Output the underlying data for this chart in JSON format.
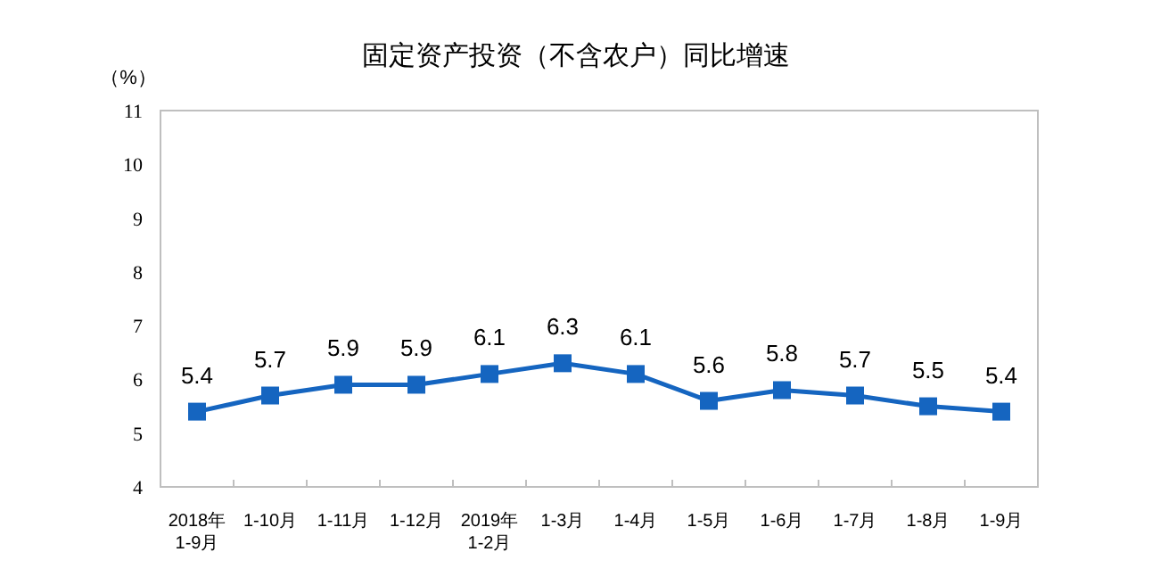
{
  "chart_data": {
    "type": "line",
    "title": "固定资产投资（不含农户）同比增速",
    "ylabel": "（%）",
    "categories": [
      "2018年\n1-9月",
      "1-10月",
      "1-11月",
      "1-12月",
      "2019年\n1-2月",
      "1-3月",
      "1-4月",
      "1-5月",
      "1-6月",
      "1-7月",
      "1-8月",
      "1-9月"
    ],
    "series": [
      {
        "color": "#1565c0",
        "values": [
          5.4,
          5.7,
          5.9,
          5.9,
          6.1,
          6.3,
          6.1,
          5.6,
          5.8,
          5.7,
          5.5,
          5.4
        ]
      }
    ],
    "ylim": [
      4,
      11
    ],
    "yticks": [
      4,
      5,
      6,
      7,
      8,
      9,
      10,
      11
    ],
    "marker": "square",
    "line_style": "solid",
    "data_labels": true
  }
}
